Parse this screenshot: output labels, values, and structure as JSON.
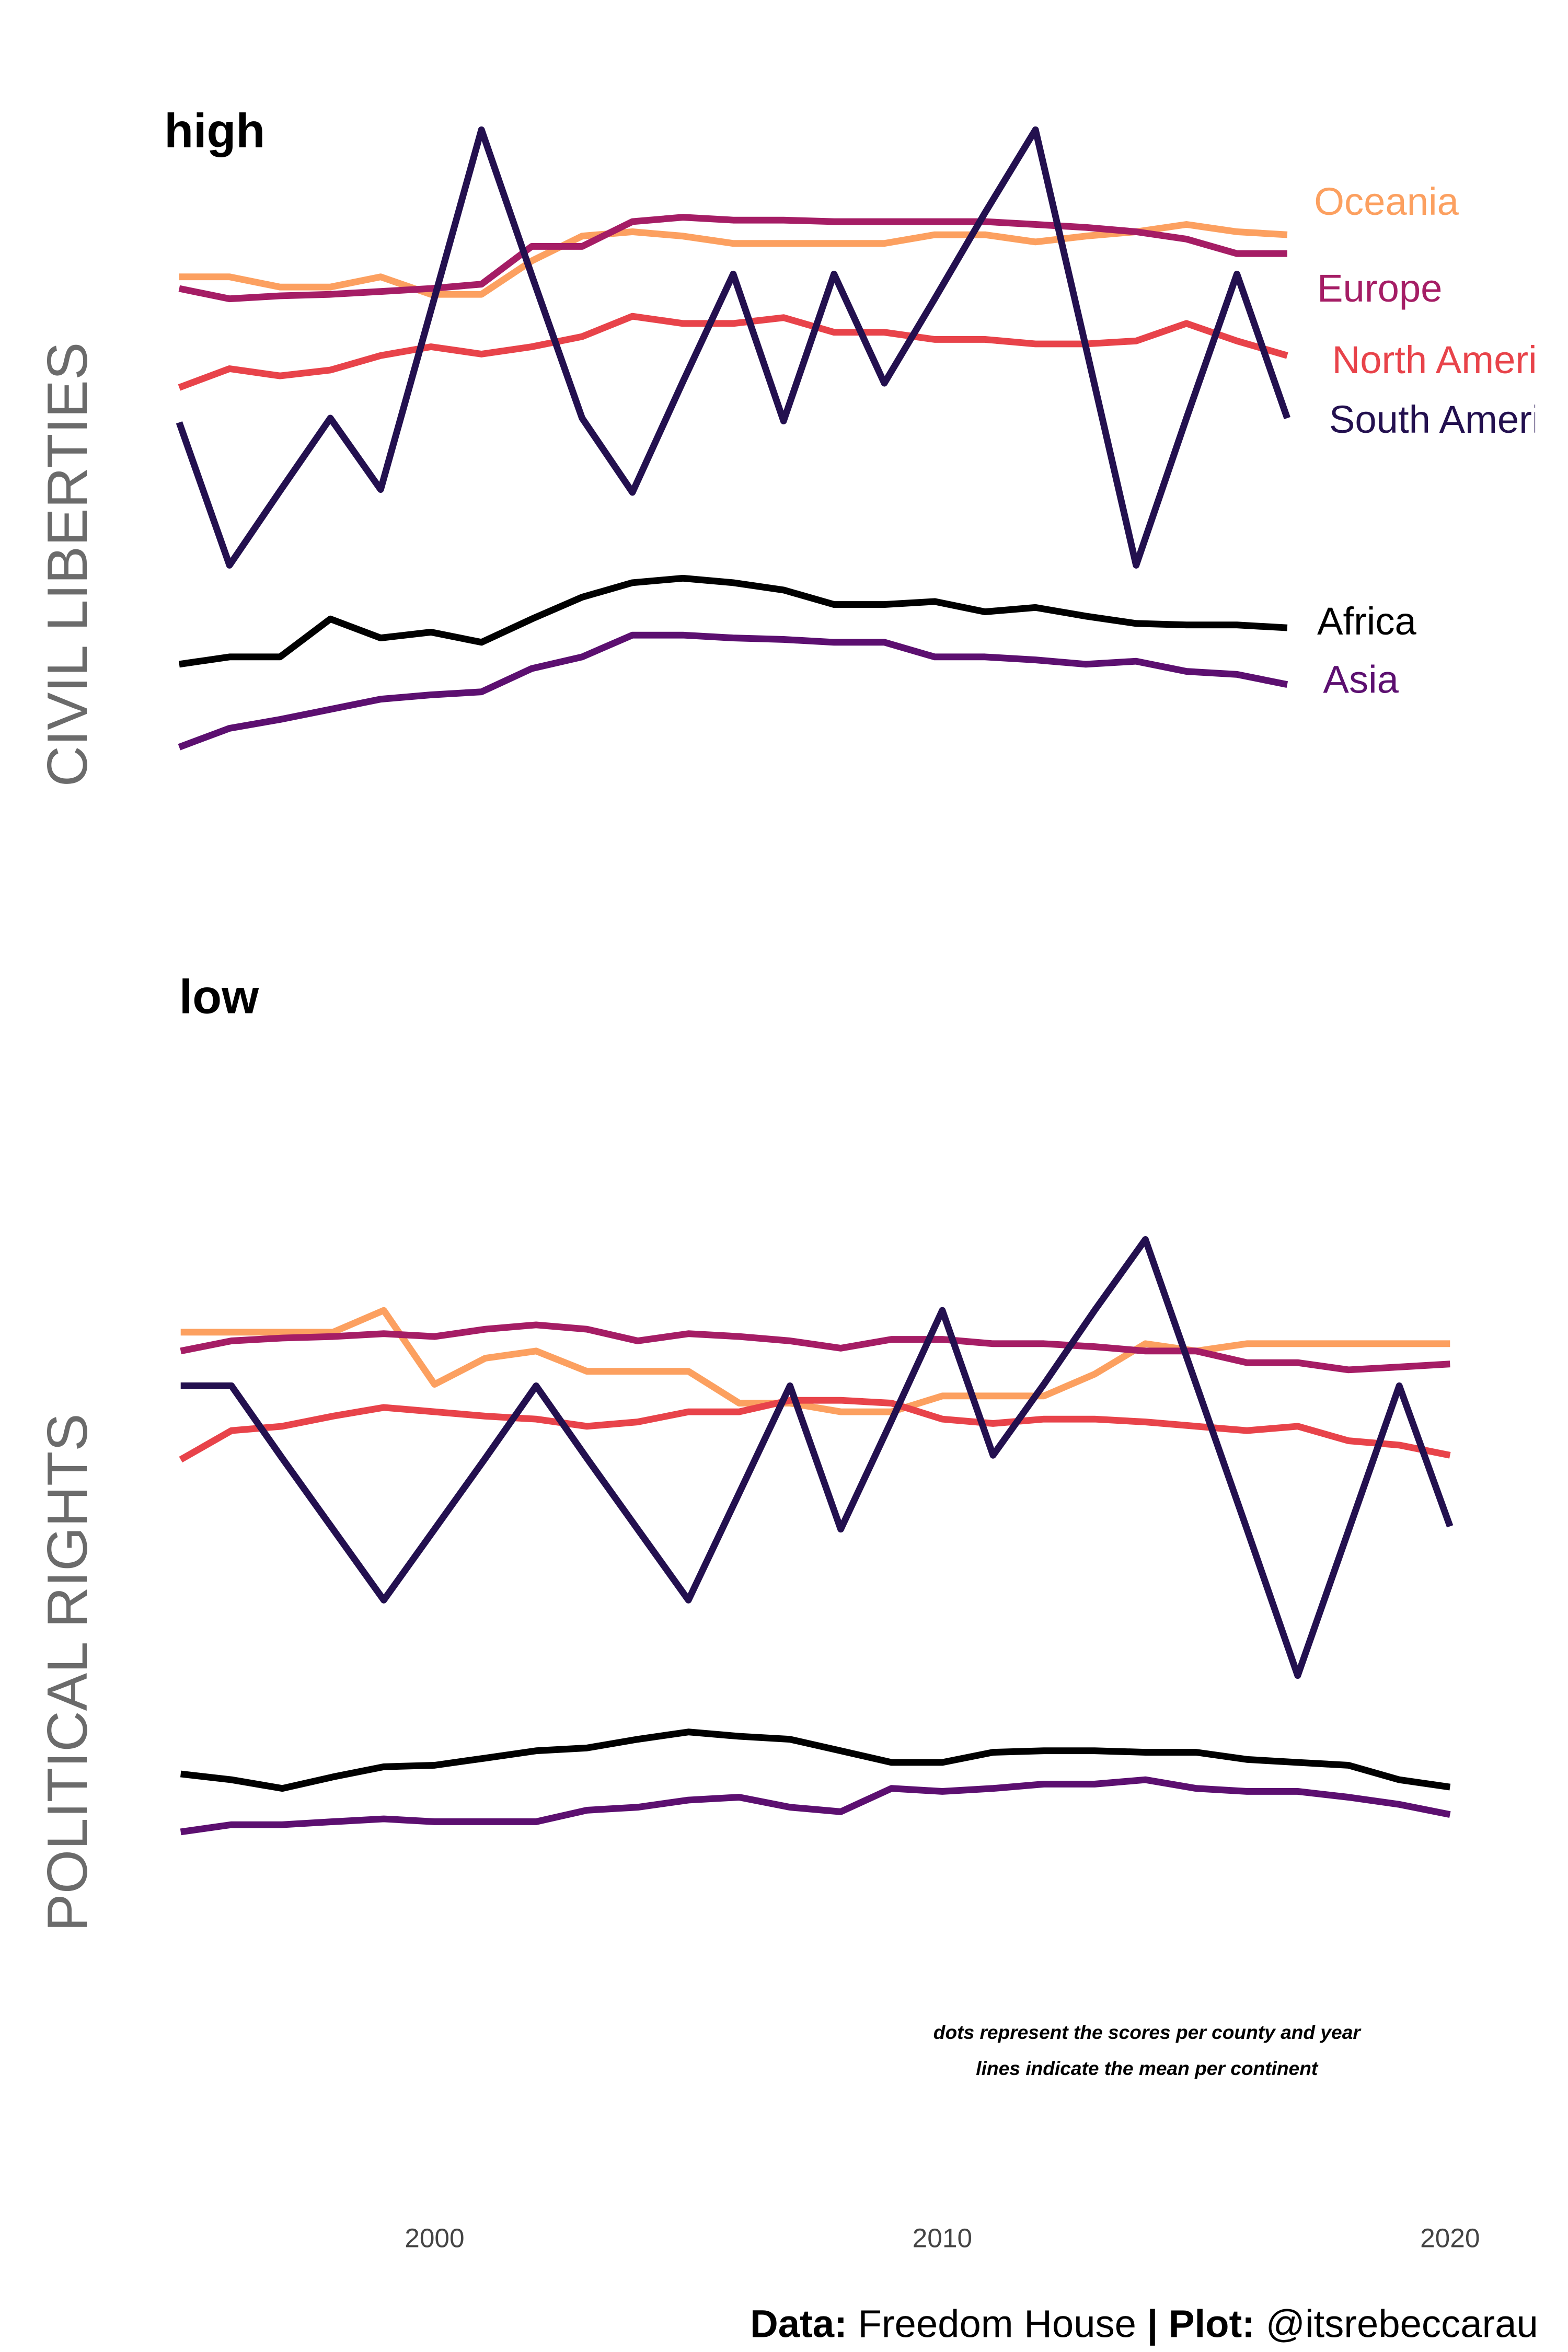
{
  "chart_data": [
    {
      "type": "line",
      "y_label": "CIVIL LIBERTIES",
      "annotations": [
        "high",
        "low"
      ],
      "xlim": [
        1995,
        2017
      ],
      "ylim": [
        7,
        1
      ],
      "x": [
        1995,
        1996,
        1997,
        1998,
        1999,
        2000,
        2001,
        2002,
        2003,
        2004,
        2005,
        2006,
        2007,
        2008,
        2009,
        2010,
        2011,
        2012,
        2013,
        2014,
        2015,
        2016,
        2017
      ],
      "series": [
        {
          "name": "Oceania",
          "color": "#fca060",
          "values": [
            2.03,
            2.03,
            2.1,
            2.1,
            2.03,
            2.15,
            2.15,
            1.92,
            1.75,
            1.72,
            1.75,
            1.8,
            1.8,
            1.8,
            1.8,
            1.74,
            1.74,
            1.79,
            1.75,
            1.72,
            1.67,
            1.72,
            1.74
          ]
        },
        {
          "name": "Europe",
          "color": "#a51d65",
          "values": [
            2.11,
            2.18,
            2.16,
            2.15,
            2.13,
            2.11,
            2.08,
            1.82,
            1.82,
            1.65,
            1.62,
            1.64,
            1.64,
            1.65,
            1.65,
            1.65,
            1.65,
            1.67,
            1.69,
            1.72,
            1.77,
            1.87,
            1.87
          ]
        },
        {
          "name": "North America",
          "color": "#e8434a",
          "values": [
            2.79,
            2.66,
            2.71,
            2.67,
            2.57,
            2.51,
            2.56,
            2.51,
            2.44,
            2.3,
            2.35,
            2.35,
            2.31,
            2.41,
            2.41,
            2.46,
            2.46,
            2.49,
            2.49,
            2.47,
            2.35,
            2.47,
            2.57
          ]
        },
        {
          "name": "South America",
          "color": "#23104f",
          "values": [
            3.03,
            4.01,
            3.5,
            3.0,
            3.49,
            2.26,
            1.02,
            2.02,
            3.0,
            3.51,
            2.75,
            2.01,
            3.02,
            2.01,
            2.76,
            2.18,
            1.59,
            1.02,
            2.51,
            4.01,
            3.0,
            2.01,
            3.0
          ]
        },
        {
          "name": "Africa",
          "color": "#000000",
          "values": [
            4.69,
            4.64,
            4.64,
            4.38,
            4.51,
            4.47,
            4.54,
            4.38,
            4.23,
            4.13,
            4.1,
            4.13,
            4.18,
            4.28,
            4.28,
            4.26,
            4.33,
            4.3,
            4.36,
            4.41,
            4.42,
            4.42,
            4.44
          ]
        },
        {
          "name": "Asia",
          "color": "#5c0f70",
          "values": [
            5.26,
            5.13,
            5.07,
            5.0,
            4.93,
            4.9,
            4.88,
            4.72,
            4.64,
            4.49,
            4.49,
            4.51,
            4.52,
            4.54,
            4.54,
            4.64,
            4.64,
            4.66,
            4.69,
            4.67,
            4.74,
            4.76,
            4.83
          ]
        }
      ]
    },
    {
      "type": "line",
      "y_label": "POLITICAL RIGHTS",
      "xlim": [
        1995,
        2020
      ],
      "ylim": [
        7,
        1
      ],
      "xticks": [
        2000,
        2010,
        2020
      ],
      "x": [
        1995,
        1996,
        1997,
        1998,
        1999,
        2000,
        2001,
        2002,
        2003,
        2004,
        2005,
        2006,
        2007,
        2008,
        2009,
        2010,
        2011,
        2012,
        2013,
        2014,
        2015,
        2016,
        2017,
        2018,
        2019,
        2020
      ],
      "series": [
        {
          "color": "#fca060",
          "values": [
            1.64,
            1.64,
            1.64,
            1.64,
            1.49,
            2.0,
            1.82,
            1.77,
            1.91,
            1.91,
            1.91,
            2.13,
            2.13,
            2.19,
            2.19,
            2.08,
            2.08,
            2.08,
            1.93,
            1.72,
            1.77,
            1.72,
            1.72,
            1.72,
            1.72,
            1.72
          ]
        },
        {
          "color": "#a51d65",
          "values": [
            1.77,
            1.7,
            1.68,
            1.67,
            1.65,
            1.67,
            1.62,
            1.59,
            1.62,
            1.7,
            1.65,
            1.67,
            1.7,
            1.75,
            1.69,
            1.69,
            1.72,
            1.72,
            1.74,
            1.77,
            1.77,
            1.85,
            1.85,
            1.9,
            1.88,
            1.86
          ]
        },
        {
          "color": "#e8434a",
          "values": [
            2.52,
            2.32,
            2.29,
            2.22,
            2.16,
            2.19,
            2.22,
            2.24,
            2.29,
            2.26,
            2.19,
            2.19,
            2.11,
            2.11,
            2.13,
            2.24,
            2.27,
            2.24,
            2.24,
            2.26,
            2.29,
            2.32,
            2.29,
            2.39,
            2.42,
            2.49
          ]
        },
        {
          "color": "#23104f",
          "values": [
            2.01,
            2.01,
            2.51,
            3.0,
            3.49,
            3.0,
            2.51,
            2.01,
            2.51,
            3.0,
            3.49,
            2.75,
            2.01,
            3.0,
            2.25,
            1.49,
            2.49,
            2.0,
            1.49,
            1.0,
            2.0,
            3.0,
            4.01,
            3.01,
            2.01,
            2.98
          ]
        },
        {
          "color": "#000000",
          "values": [
            4.69,
            4.73,
            4.79,
            4.71,
            4.64,
            4.63,
            4.58,
            4.53,
            4.51,
            4.45,
            4.4,
            4.43,
            4.45,
            4.53,
            4.61,
            4.61,
            4.54,
            4.53,
            4.53,
            4.54,
            4.54,
            4.59,
            4.61,
            4.63,
            4.73,
            4.78
          ]
        },
        {
          "color": "#5c0f70",
          "values": [
            5.09,
            5.04,
            5.04,
            5.02,
            5.0,
            5.02,
            5.02,
            5.02,
            4.94,
            4.92,
            4.87,
            4.85,
            4.92,
            4.95,
            4.79,
            4.81,
            4.79,
            4.76,
            4.76,
            4.73,
            4.79,
            4.81,
            4.81,
            4.85,
            4.9,
            4.97
          ]
        }
      ],
      "note": [
        "dots represent the scores per county and year",
        "lines indicate the mean per continent"
      ],
      "caption": {
        "data_label": "Data:",
        "data_value": "Freedom House",
        "separator": "|",
        "plot_label": "Plot:",
        "plot_value": "@itsrebeccarau"
      }
    }
  ]
}
